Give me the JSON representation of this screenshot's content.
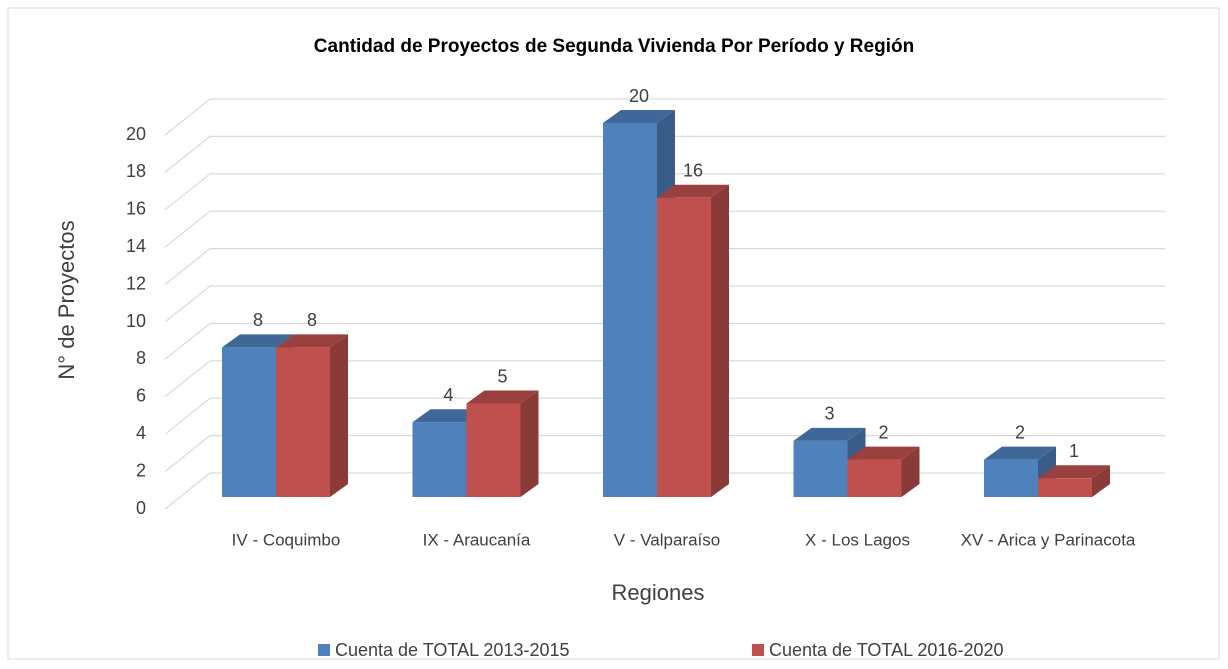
{
  "chart_data": {
    "type": "bar3d",
    "title": "Cantidad de Proyectos de Segunda Vivienda Por Período y Región",
    "ylabel": "N° de Proyectos",
    "xlabel": "Regiones",
    "categories": [
      "IV - Coquimbo",
      "IX - Araucanía",
      "V - Valparaíso",
      "X - Los Lagos",
      "XV - Arica y Parinacota"
    ],
    "series": [
      {
        "name": "Cuenta de TOTAL 2013-2015",
        "color": "#4f81bd",
        "values": [
          8,
          4,
          20,
          3,
          2
        ]
      },
      {
        "name": "Cuenta de TOTAL 2016-2020",
        "color": "#c0504d",
        "values": [
          8,
          5,
          16,
          2,
          1
        ]
      }
    ],
    "ylim": [
      0,
      20
    ],
    "yticks": [
      0,
      2,
      4,
      6,
      8,
      10,
      12,
      14,
      16,
      18,
      20
    ],
    "grid": true,
    "legend": "bottom"
  }
}
